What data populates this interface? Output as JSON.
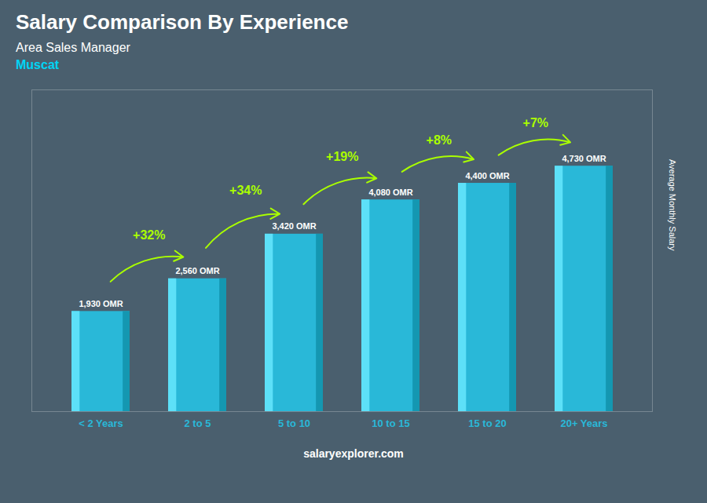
{
  "chart_data": {
    "type": "bar",
    "title": "Salary Comparison By Experience",
    "subtitle": "Area Sales Manager",
    "city": "Muscat",
    "ylabel": "Average Monthly Salary",
    "caption": "salaryexplorer.com",
    "categories": [
      "< 2 Years",
      "2 to 5",
      "5 to 10",
      "10 to 15",
      "15 to 20",
      "20+ Years"
    ],
    "values": [
      1930,
      2560,
      3420,
      4080,
      4400,
      4730
    ],
    "value_labels": [
      "1,930 OMR",
      "2,560 OMR",
      "3,420 OMR",
      "4,080 OMR",
      "4,400 OMR",
      "4,730 OMR"
    ],
    "data_labels": true,
    "color": "#29b8d8",
    "ylim": [
      0,
      6200
    ],
    "tick_labels": "x",
    "grid": false,
    "annotations": [
      {
        "from": "< 2 Years",
        "to": "2 to 5",
        "text": "+32%"
      },
      {
        "from": "2 to 5",
        "to": "5 to 10",
        "text": "+34%"
      },
      {
        "from": "5 to 10",
        "to": "10 to 15",
        "text": "+19%"
      },
      {
        "from": "10 to 15",
        "to": "15 to 20",
        "text": "+8%"
      },
      {
        "from": "15 to 20",
        "to": "20+ Years",
        "text": "+7%"
      }
    ]
  }
}
